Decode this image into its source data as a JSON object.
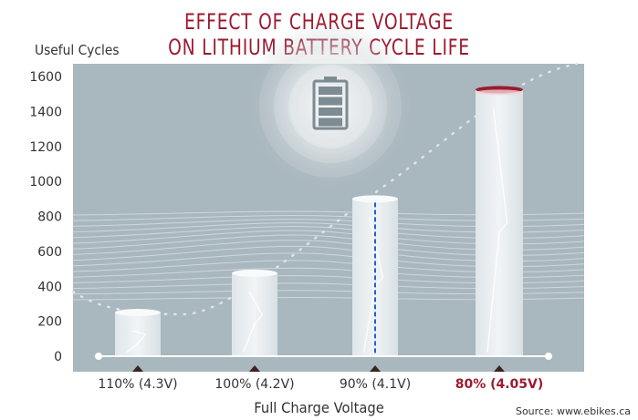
{
  "chart_data": {
    "type": "bar",
    "title": [
      "EFFECT OF CHARGE VOLTAGE",
      "ON LITHIUM BATTERY CYCLE LIFE"
    ],
    "ylabel": "Useful Cycles",
    "xlabel": "Full Charge Voltage",
    "categories": [
      "110% (4.3V)",
      "100% (4.2V)",
      "90% (4.1V)",
      "80% (4.05V)"
    ],
    "values": [
      250,
      475,
      900,
      1525
    ],
    "highlight_index": 3,
    "ylim": [
      0,
      1600
    ],
    "yticks": [
      0,
      200,
      400,
      600,
      800,
      1000,
      1200,
      1400,
      1600
    ],
    "grid": false,
    "source": "Source: www.ebikes.ca"
  },
  "colors": {
    "title": "#9b1b30",
    "plot_bg": "#a9b7be",
    "bar": "#e6ecef",
    "highlight_cap": "#9b1b30",
    "dashed_line": "#1f5fd6",
    "axis": "#ffffff"
  },
  "icons": {
    "battery": "battery-icon"
  }
}
